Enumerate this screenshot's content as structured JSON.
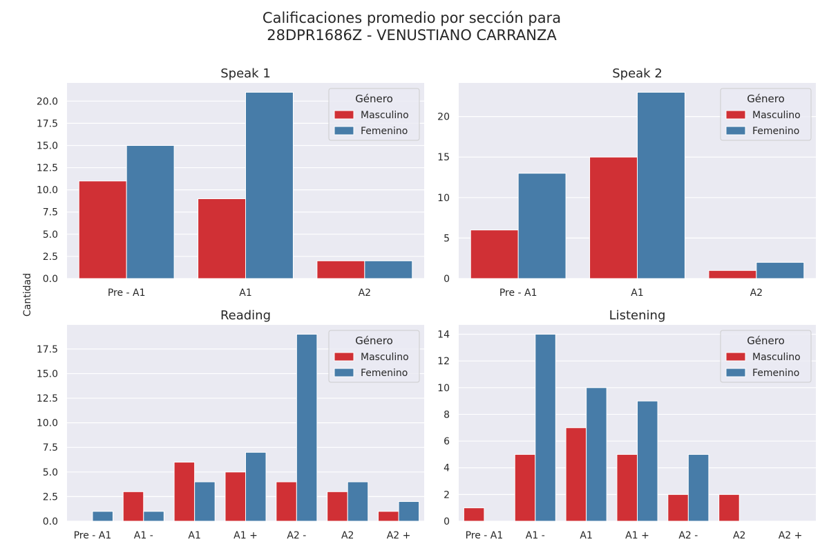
{
  "figure": {
    "title_line1": "Calificaciones promedio por sección para",
    "title_line2": "28DPR1686Z - VENUSTIANO CARRANZA",
    "ylabel": "Cantidad"
  },
  "colors": {
    "Masculino": "#d03035",
    "Femenino": "#477ca8",
    "background": "#eaeaf2",
    "grid": "#ffffff"
  },
  "chart_data": [
    {
      "type": "bar",
      "title": "Speak 1",
      "categories": [
        "Pre - A1",
        "A1",
        "A2"
      ],
      "series": [
        {
          "name": "Masculino",
          "values": [
            11,
            9,
            2
          ]
        },
        {
          "name": "Femenino",
          "values": [
            15,
            21,
            2
          ]
        }
      ],
      "ylim": [
        0,
        22.05
      ],
      "yticks": [
        0,
        2.5,
        5,
        7.5,
        10,
        12.5,
        15,
        17.5,
        20
      ],
      "ytick_labels": [
        "0.0",
        "2.5",
        "5.0",
        "7.5",
        "10.0",
        "12.5",
        "15.0",
        "17.5",
        "20.0"
      ],
      "legend": {
        "title": "Género",
        "position": "top-right"
      },
      "grid": true
    },
    {
      "type": "bar",
      "title": "Speak 2",
      "categories": [
        "Pre - A1",
        "A1",
        "A2"
      ],
      "series": [
        {
          "name": "Masculino",
          "values": [
            6,
            15,
            1
          ]
        },
        {
          "name": "Femenino",
          "values": [
            13,
            23,
            2
          ]
        }
      ],
      "ylim": [
        0,
        24.15
      ],
      "yticks": [
        0,
        5,
        10,
        15,
        20
      ],
      "ytick_labels": [
        "0",
        "5",
        "10",
        "15",
        "20"
      ],
      "legend": {
        "title": "Género",
        "position": "top-right"
      },
      "grid": true
    },
    {
      "type": "bar",
      "title": "Reading",
      "categories": [
        "Pre - A1",
        "A1 -",
        "A1",
        "A1 +",
        "A2 -",
        "A2",
        "A2 +"
      ],
      "series": [
        {
          "name": "Masculino",
          "values": [
            0,
            3,
            6,
            5,
            4,
            3,
            1
          ]
        },
        {
          "name": "Femenino",
          "values": [
            1,
            1,
            4,
            7,
            19,
            4,
            2
          ]
        }
      ],
      "ylim": [
        0,
        19.95
      ],
      "yticks": [
        0,
        2.5,
        5,
        7.5,
        10,
        12.5,
        15,
        17.5
      ],
      "ytick_labels": [
        "0.0",
        "2.5",
        "5.0",
        "7.5",
        "10.0",
        "12.5",
        "15.0",
        "17.5"
      ],
      "legend": {
        "title": "Género",
        "position": "top-right"
      },
      "grid": true
    },
    {
      "type": "bar",
      "title": "Listening",
      "categories": [
        "Pre - A1",
        "A1 -",
        "A1",
        "A1 +",
        "A2 -",
        "A2",
        "A2 +"
      ],
      "series": [
        {
          "name": "Masculino",
          "values": [
            1,
            5,
            7,
            5,
            2,
            2,
            0
          ]
        },
        {
          "name": "Femenino",
          "values": [
            0,
            14,
            10,
            9,
            5,
            0,
            0
          ]
        }
      ],
      "ylim": [
        0,
        14.7
      ],
      "yticks": [
        0,
        2,
        4,
        6,
        8,
        10,
        12,
        14
      ],
      "ytick_labels": [
        "0",
        "2",
        "4",
        "6",
        "8",
        "10",
        "12",
        "14"
      ],
      "legend": {
        "title": "Género",
        "position": "top-right"
      },
      "grid": true
    }
  ]
}
